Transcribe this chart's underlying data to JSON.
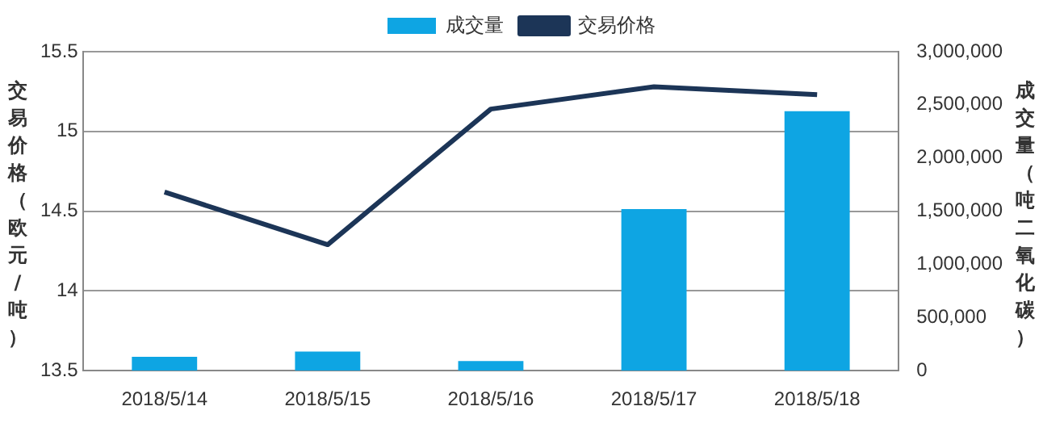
{
  "chart_data": {
    "type": "bar",
    "categories": [
      "2018/5/14",
      "2018/5/15",
      "2018/5/16",
      "2018/5/17",
      "2018/5/18"
    ],
    "ylabel": "交易价格（欧元/吨）",
    "y2label": "成交量（吨二氧化碳）",
    "series": [
      {
        "name": "成交量",
        "axis": "y2",
        "color": "#0ea5e3",
        "values": [
          130000,
          180000,
          90000,
          1520000,
          2440000
        ]
      },
      {
        "name": "交易价格",
        "type": "line",
        "axis": "y",
        "color": "#1c3557",
        "values": [
          14.62,
          14.29,
          15.14,
          15.28,
          15.23
        ]
      }
    ],
    "ylim": [
      13.5,
      15.5
    ],
    "yticks": [
      13.5,
      14,
      14.5,
      15,
      15.5
    ],
    "y2lim": [
      0,
      3000000
    ],
    "y2ticks": [
      0,
      {
        "value": 500000,
        "label": "500,000"
      },
      {
        "value": 1000000,
        "label": "1,000,000"
      },
      {
        "value": 1500000,
        "label": "1,500,000"
      },
      {
        "value": 2000000,
        "label": "2,000,000"
      },
      {
        "value": 2500000,
        "label": "2,500,000"
      },
      {
        "value": 3000000,
        "label": "3,000,000"
      }
    ],
    "grid": "y",
    "legend": "top",
    "marker": "none"
  }
}
